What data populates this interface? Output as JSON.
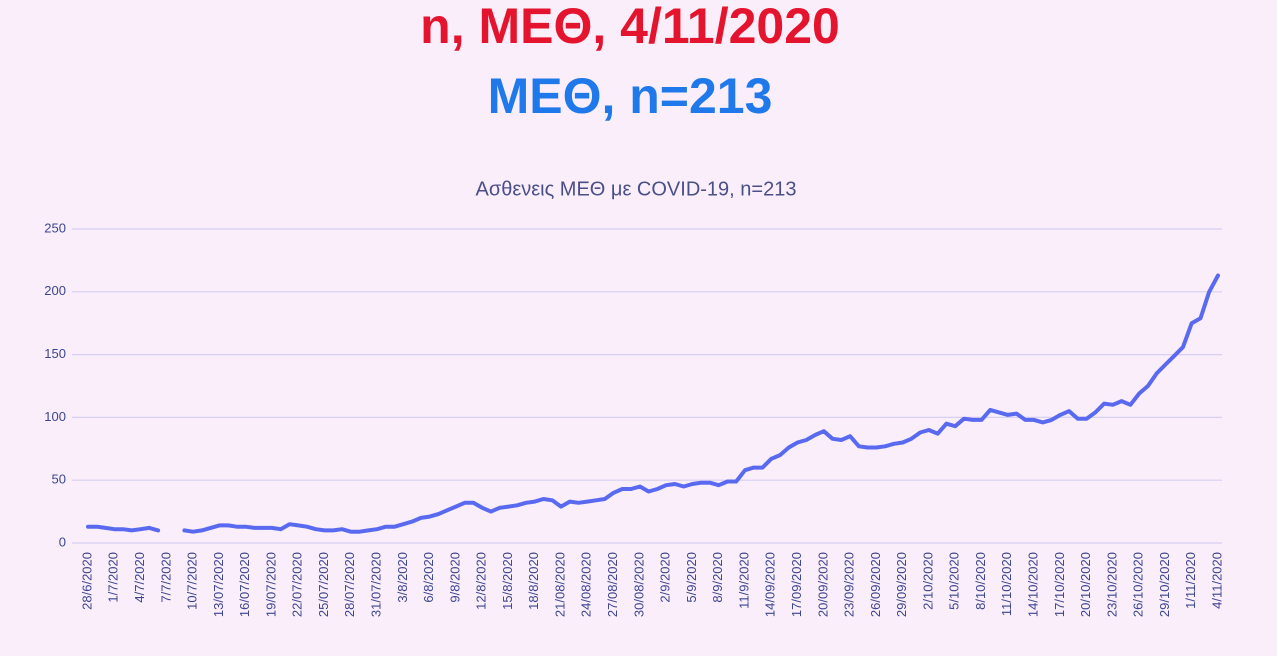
{
  "slide": {
    "title": "n, ΜΕΘ, 4/11/2020",
    "subtitle": "ΜΕΘ, n=213"
  },
  "chart_data": {
    "type": "line",
    "title": "Ασθενεις ΜΕΘ με COVID-19, n=213",
    "categories": [
      "28/6/2020",
      null,
      null,
      "1/7/2020",
      null,
      null,
      "4/7/2020",
      null,
      null,
      "7/7/2020",
      null,
      null,
      "10/7/2020",
      null,
      null,
      "13/07/2020",
      null,
      null,
      "16/07/2020",
      null,
      null,
      "19/07/2020",
      null,
      null,
      "22/07/2020",
      null,
      null,
      "25/07/2020",
      null,
      null,
      "28/07/2020",
      null,
      null,
      "31/07/2020",
      null,
      null,
      "3/8/2020",
      null,
      null,
      "6/8/2020",
      null,
      null,
      "9/8/2020",
      null,
      null,
      "12/8/2020",
      null,
      null,
      "15/8/2020",
      null,
      null,
      "18/8/2020",
      null,
      null,
      "21/08/2020",
      null,
      null,
      "24/08/2020",
      null,
      null,
      "27/08/2020",
      null,
      null,
      "30/08/2020",
      null,
      null,
      "2/9/2020",
      null,
      null,
      "5/9/2020",
      null,
      null,
      "8/9/2020",
      null,
      null,
      "11/9/2020",
      null,
      null,
      "14/09/2020",
      null,
      null,
      "17/09/2020",
      null,
      null,
      "20/09/2020",
      null,
      null,
      "23/09/2020",
      null,
      null,
      "26/09/2020",
      null,
      null,
      "29/09/2020",
      null,
      null,
      "2/10/2020",
      null,
      null,
      "5/10/2020",
      null,
      null,
      "8/10/2020",
      null,
      null,
      "11/10/2020",
      null,
      null,
      "14/10/2020",
      null,
      null,
      "17/10/2020",
      null,
      null,
      "20/10/2020",
      null,
      null,
      "23/10/2020",
      null,
      null,
      "26/10/2020",
      null,
      null,
      "29/10/2020",
      null,
      null,
      "1/11/2020",
      null,
      null,
      "4/11/2020"
    ],
    "values": [
      13,
      13,
      12,
      11,
      11,
      10,
      11,
      12,
      10,
      null,
      null,
      10,
      9,
      10,
      12,
      14,
      14,
      13,
      13,
      12,
      12,
      12,
      11,
      15,
      14,
      13,
      11,
      10,
      10,
      11,
      9,
      9,
      10,
      11,
      13,
      13,
      15,
      17,
      20,
      21,
      23,
      26,
      29,
      32,
      32,
      28,
      25,
      28,
      29,
      30,
      32,
      33,
      35,
      34,
      29,
      33,
      32,
      33,
      34,
      35,
      40,
      43,
      43,
      45,
      41,
      43,
      46,
      47,
      45,
      47,
      48,
      48,
      46,
      49,
      49,
      58,
      60,
      60,
      67,
      70,
      76,
      80,
      82,
      86,
      89,
      83,
      82,
      85,
      77,
      76,
      76,
      77,
      79,
      80,
      83,
      88,
      90,
      87,
      95,
      93,
      99,
      98,
      98,
      106,
      104,
      102,
      103,
      98,
      98,
      96,
      98,
      102,
      105,
      99,
      99,
      104,
      111,
      110,
      113,
      110,
      119,
      125,
      135,
      142,
      149,
      156,
      175,
      179,
      200,
      213
    ],
    "color": "#5a6af0",
    "ylim": [
      0,
      250
    ],
    "yticks": [
      0,
      50,
      100,
      150,
      200,
      250
    ],
    "grid": true
  }
}
